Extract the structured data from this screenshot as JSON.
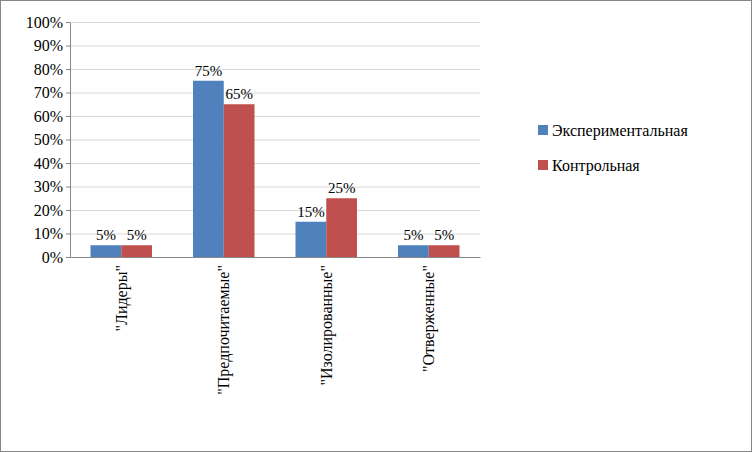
{
  "chart_data": {
    "type": "bar",
    "categories": [
      "\"Лидеры\"",
      "\"Предпочитаемые\"",
      "\"Изолированные\"",
      "\"Отверженные\""
    ],
    "series": [
      {
        "name": "Экспериментальная",
        "color": "#4f81bd",
        "values": [
          5,
          75,
          15,
          5
        ],
        "value_labels": [
          "5%",
          "75%",
          "15%",
          "5%"
        ]
      },
      {
        "name": "Контрольная",
        "color": "#c0504d",
        "values": [
          5,
          65,
          25,
          5
        ],
        "value_labels": [
          "5%",
          "65%",
          "25%",
          "5%"
        ]
      }
    ],
    "ylim": [
      0,
      100
    ],
    "yticks": [
      {
        "value": 0,
        "label": "0%"
      },
      {
        "value": 10,
        "label": "10%"
      },
      {
        "value": 20,
        "label": "20%"
      },
      {
        "value": 30,
        "label": "30%"
      },
      {
        "value": 40,
        "label": "40%"
      },
      {
        "value": 50,
        "label": "50%"
      },
      {
        "value": 60,
        "label": "60%"
      },
      {
        "value": 70,
        "label": "70%"
      },
      {
        "value": 80,
        "label": "80%"
      },
      {
        "value": 90,
        "label": "90%"
      },
      {
        "value": 100,
        "label": "100%"
      }
    ],
    "grid": true,
    "data_labels": true,
    "legend": "right"
  }
}
